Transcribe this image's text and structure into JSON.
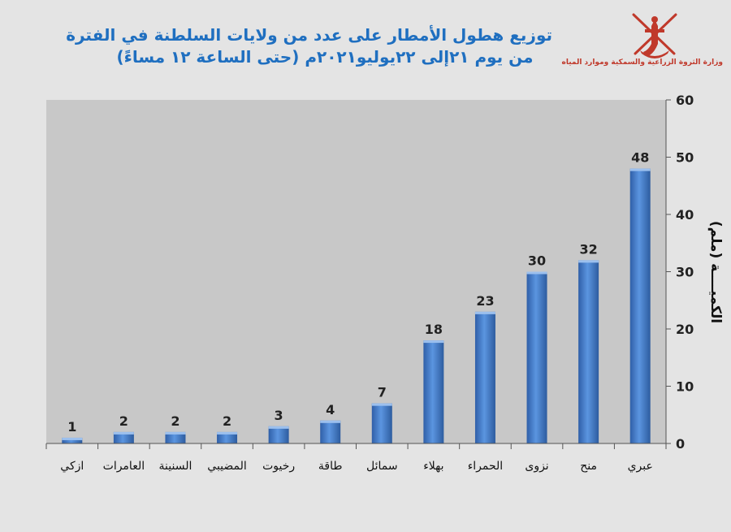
{
  "title": {
    "line1": "توزيع هطول الأمطار على عدد من ولايات السلطنة في الفترة",
    "line2": "من يوم ٢١إلى ٢٢يوليو٢٠٢١م (حتى الساعة ١٢ مساءً)"
  },
  "ministry": "وزارة الثروة الزراعية والسمكية وموارد المياه",
  "colors": {
    "bar": "#3c77c8",
    "bar_light": "#8fb5ea",
    "title": "#1f6fc0",
    "plot_bg": "#c8c8c8",
    "emblem": "#c0392b"
  },
  "chart_data": {
    "type": "bar",
    "categories": [
      "ازكي",
      "العامرات",
      "السنينة",
      "المضيبي",
      "رخيوت",
      "طاقة",
      "سمائل",
      "بهلاء",
      "الحمراء",
      "نزوى",
      "منح",
      "عبري"
    ],
    "values": [
      1,
      2,
      2,
      2,
      3,
      4,
      7,
      18,
      23,
      30,
      32,
      48
    ],
    "ylabel": "الكميــــة (ملم)",
    "ylim": [
      0,
      60
    ],
    "yticks": [
      0,
      10,
      20,
      30,
      40,
      50,
      60
    ],
    "y_axis_side": "right",
    "grid": false,
    "data_labels": true
  }
}
